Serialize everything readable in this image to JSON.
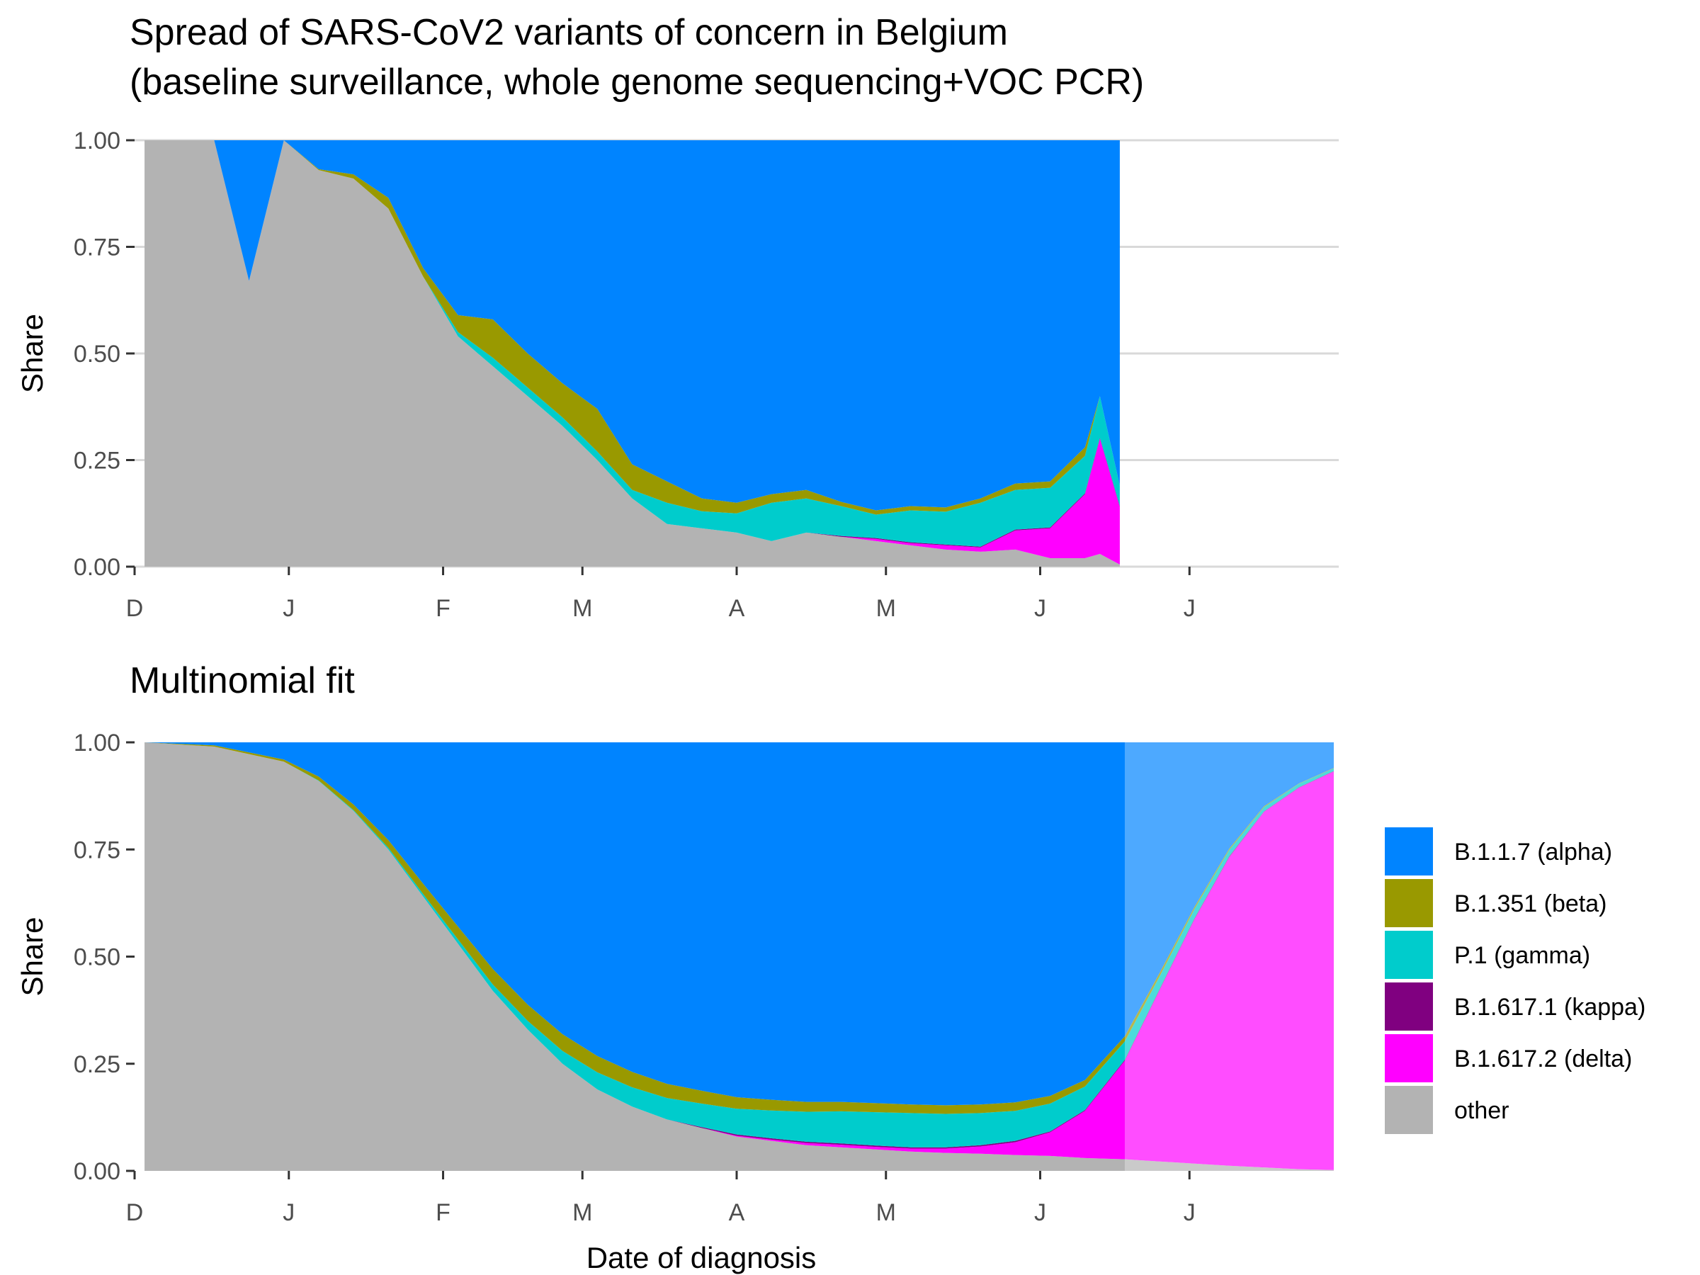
{
  "chart_data": [
    {
      "type": "area",
      "stacked": true,
      "title": "Spread of SARS-CoV2 variants of concern in Belgium\n(baseline surveillance, whole genome sequencing+VOC PCR)",
      "title_lines": [
        "Spread of SARS-CoV2 variants of concern in Belgium",
        "(baseline surveillance, whole genome sequencing+VOC PCR)"
      ],
      "xlabel": "",
      "ylabel": "Share",
      "xlim": [
        "2020-12-01",
        "2021-07-31"
      ],
      "ylim": [
        0,
        1
      ],
      "yticks": [
        "0.00",
        "0.25",
        "0.50",
        "0.75",
        "1.00"
      ],
      "xticks": [
        {
          "date": "2020-12-01",
          "label": "D"
        },
        {
          "date": "2021-01-01",
          "label": "J"
        },
        {
          "date": "2021-02-01",
          "label": "F"
        },
        {
          "date": "2021-03-01",
          "label": "M"
        },
        {
          "date": "2021-04-01",
          "label": "A"
        },
        {
          "date": "2021-05-01",
          "label": "M"
        },
        {
          "date": "2021-06-01",
          "label": "J"
        },
        {
          "date": "2021-07-01",
          "label": "J"
        }
      ],
      "grid": "horizontal",
      "x": [
        "2020-12-03",
        "2020-12-17",
        "2020-12-24",
        "2020-12-31",
        "2021-01-07",
        "2021-01-14",
        "2021-01-21",
        "2021-01-28",
        "2021-02-04",
        "2021-02-11",
        "2021-02-18",
        "2021-02-25",
        "2021-03-04",
        "2021-03-11",
        "2021-03-18",
        "2021-03-25",
        "2021-04-01",
        "2021-04-08",
        "2021-04-15",
        "2021-04-22",
        "2021-04-29",
        "2021-05-06",
        "2021-05-13",
        "2021-05-20",
        "2021-05-27",
        "2021-06-03",
        "2021-06-10",
        "2021-06-13",
        "2021-06-17"
      ],
      "series": [
        {
          "name": "other",
          "values": [
            1.0,
            1.0,
            0.67,
            1.0,
            0.93,
            0.91,
            0.84,
            0.68,
            0.54,
            0.47,
            0.4,
            0.33,
            0.25,
            0.16,
            0.1,
            0.09,
            0.08,
            0.06,
            0.08,
            0.07,
            0.06,
            0.05,
            0.04,
            0.035,
            0.04,
            0.02,
            0.02,
            0.03,
            0.005
          ]
        },
        {
          "name": "B.1.617.2 (delta)",
          "values": [
            0,
            0,
            0,
            0,
            0,
            0,
            0,
            0,
            0,
            0,
            0,
            0,
            0,
            0,
            0,
            0,
            0,
            0,
            0,
            0,
            0.005,
            0.005,
            0.01,
            0.01,
            0.045,
            0.07,
            0.15,
            0.27,
            0.135
          ]
        },
        {
          "name": "B.1.617.1 (kappa)",
          "values": [
            0,
            0,
            0,
            0,
            0,
            0,
            0,
            0,
            0,
            0,
            0,
            0,
            0,
            0,
            0,
            0,
            0,
            0,
            0,
            0.002,
            0.002,
            0.002,
            0.002,
            0.002,
            0.002,
            0.002,
            0.002,
            0.002,
            0.002
          ]
        },
        {
          "name": "P.1 (gamma)",
          "values": [
            0,
            0,
            0,
            0,
            0,
            0,
            0,
            0,
            0.01,
            0.02,
            0.02,
            0.02,
            0.02,
            0.02,
            0.05,
            0.04,
            0.045,
            0.09,
            0.08,
            0.07,
            0.055,
            0.075,
            0.077,
            0.103,
            0.093,
            0.093,
            0.088,
            0.098,
            0.048
          ]
        },
        {
          "name": "B.1.351 (beta)",
          "values": [
            0,
            0,
            0,
            0,
            0.002,
            0.01,
            0.025,
            0.02,
            0.04,
            0.09,
            0.08,
            0.08,
            0.1,
            0.06,
            0.05,
            0.03,
            0.025,
            0.02,
            0.02,
            0.01,
            0.01,
            0.01,
            0.01,
            0.01,
            0.015,
            0.015,
            0.02,
            0,
            0
          ]
        },
        {
          "name": "B.1.1.7 (alpha)",
          "values": [
            0,
            0,
            0.33,
            0,
            0.068,
            0.08,
            0.135,
            0.3,
            0.41,
            0.42,
            0.5,
            0.57,
            0.63,
            0.76,
            0.8,
            0.84,
            0.85,
            0.83,
            0.82,
            0.848,
            0.873,
            0.858,
            0.861,
            0.84,
            0.805,
            0.82,
            0.72,
            0.6,
            0.81
          ]
        }
      ]
    },
    {
      "type": "area",
      "stacked": true,
      "title": "Multinomial fit",
      "xlabel": "Date of diagnosis",
      "ylabel": "Share",
      "xlim": [
        "2020-12-01",
        "2021-07-31"
      ],
      "ylim": [
        0,
        1
      ],
      "yticks": [
        "0.00",
        "0.25",
        "0.50",
        "0.75",
        "1.00"
      ],
      "xticks": [
        {
          "date": "2020-12-01",
          "label": "D"
        },
        {
          "date": "2021-01-01",
          "label": "J"
        },
        {
          "date": "2021-02-01",
          "label": "F"
        },
        {
          "date": "2021-03-01",
          "label": "M"
        },
        {
          "date": "2021-04-01",
          "label": "A"
        },
        {
          "date": "2021-05-01",
          "label": "M"
        },
        {
          "date": "2021-06-01",
          "label": "J"
        },
        {
          "date": "2021-07-01",
          "label": "J"
        }
      ],
      "grid": "none",
      "fit_end_date": "2021-06-18",
      "extrapolation_shaded": true,
      "x": [
        "2020-12-03",
        "2020-12-17",
        "2020-12-31",
        "2021-01-07",
        "2021-01-14",
        "2021-01-21",
        "2021-01-28",
        "2021-02-04",
        "2021-02-11",
        "2021-02-18",
        "2021-02-25",
        "2021-03-04",
        "2021-03-11",
        "2021-03-18",
        "2021-03-25",
        "2021-04-01",
        "2021-04-08",
        "2021-04-15",
        "2021-04-22",
        "2021-04-29",
        "2021-05-06",
        "2021-05-13",
        "2021-05-20",
        "2021-05-27",
        "2021-06-03",
        "2021-06-10",
        "2021-06-18",
        "2021-06-25",
        "2021-07-02",
        "2021-07-09",
        "2021-07-16",
        "2021-07-23",
        "2021-07-30"
      ],
      "series": [
        {
          "name": "other",
          "values": [
            1.0,
            0.99,
            0.955,
            0.91,
            0.84,
            0.75,
            0.64,
            0.53,
            0.42,
            0.33,
            0.25,
            0.19,
            0.15,
            0.12,
            0.1,
            0.08,
            0.07,
            0.06,
            0.055,
            0.05,
            0.045,
            0.042,
            0.04,
            0.037,
            0.035,
            0.03,
            0.027,
            0.022,
            0.017,
            0.012,
            0.008,
            0.004,
            0.002
          ]
        },
        {
          "name": "B.1.617.2 (delta)",
          "values": [
            0,
            0,
            0,
            0,
            0,
            0,
            0,
            0,
            0,
            0,
            0,
            0,
            0,
            0,
            0,
            0.002,
            0.003,
            0.005,
            0.006,
            0.006,
            0.007,
            0.01,
            0.017,
            0.03,
            0.055,
            0.11,
            0.23,
            0.4,
            0.57,
            0.72,
            0.83,
            0.89,
            0.93
          ]
        },
        {
          "name": "B.1.617.1 (kappa)",
          "values": [
            0,
            0,
            0,
            0,
            0,
            0,
            0,
            0,
            0,
            0,
            0,
            0,
            0,
            0,
            0.002,
            0.003,
            0.003,
            0.003,
            0.003,
            0.003,
            0.003,
            0.003,
            0.003,
            0.003,
            0.002,
            0.002,
            0.002,
            0.002,
            0.002,
            0.002,
            0.001,
            0.001,
            0.001
          ]
        },
        {
          "name": "P.1 (gamma)",
          "values": [
            0,
            0,
            0,
            0.001,
            0.002,
            0.004,
            0.006,
            0.01,
            0.015,
            0.02,
            0.03,
            0.04,
            0.045,
            0.05,
            0.055,
            0.06,
            0.065,
            0.07,
            0.075,
            0.078,
            0.08,
            0.078,
            0.075,
            0.07,
            0.065,
            0.055,
            0.043,
            0.03,
            0.022,
            0.015,
            0.01,
            0.008,
            0.006
          ]
        },
        {
          "name": "B.1.351 (beta)",
          "values": [
            0,
            0.003,
            0.005,
            0.009,
            0.013,
            0.018,
            0.024,
            0.03,
            0.036,
            0.038,
            0.039,
            0.038,
            0.036,
            0.033,
            0.03,
            0.027,
            0.025,
            0.023,
            0.022,
            0.021,
            0.02,
            0.02,
            0.02,
            0.02,
            0.018,
            0.015,
            0.012,
            0.008,
            0.005,
            0.003,
            0.002,
            0.001,
            0.001
          ]
        },
        {
          "name": "B.1.1.7 (alpha)",
          "values": [
            0,
            0.007,
            0.04,
            0.08,
            0.145,
            0.228,
            0.33,
            0.43,
            0.529,
            0.612,
            0.681,
            0.732,
            0.769,
            0.797,
            0.813,
            0.828,
            0.834,
            0.839,
            0.839,
            0.842,
            0.845,
            0.847,
            0.845,
            0.84,
            0.825,
            0.788,
            0.686,
            0.538,
            0.384,
            0.248,
            0.149,
            0.096,
            0.06
          ]
        }
      ]
    }
  ],
  "legend": {
    "placement": "right",
    "items": [
      {
        "label": "B.1.1.7 (alpha)",
        "color": "#0084FF"
      },
      {
        "label": "B.1.351 (beta)",
        "color": "#999900"
      },
      {
        "label": "P.1 (gamma)",
        "color": "#00CCCC"
      },
      {
        "label": "B.1.617.1 (kappa)",
        "color": "#800080"
      },
      {
        "label": "B.1.617.2 (delta)",
        "color": "#FF00FF"
      },
      {
        "label": "other",
        "color": "#B3B3B3"
      }
    ]
  },
  "colors": {
    "B.1.1.7 (alpha)": "#0084FF",
    "B.1.351 (beta)": "#999900",
    "P.1 (gamma)": "#00CCCC",
    "B.1.617.1 (kappa)": "#800080",
    "B.1.617.2 (delta)": "#FF00FF",
    "other": "#B3B3B3",
    "gridline": "#D9D9D9",
    "tick_text": "#4D4D4D"
  }
}
